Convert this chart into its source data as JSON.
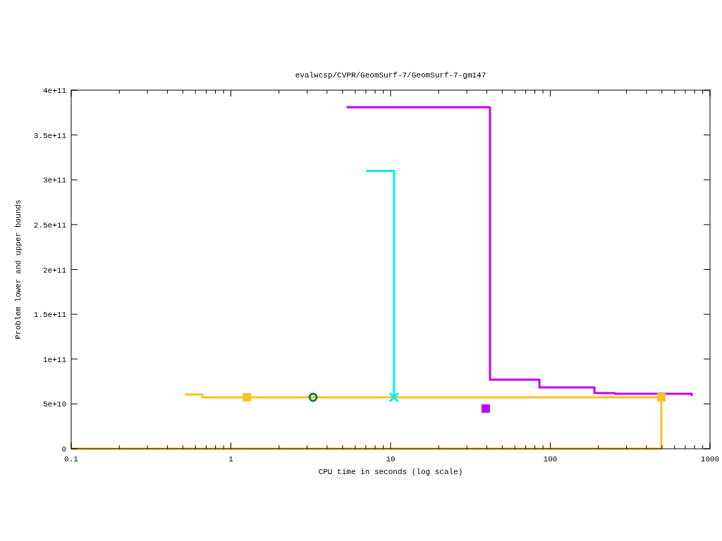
{
  "chart_data": {
    "type": "step",
    "title": "evalwcsp/CVPR/GeomSurf-7/GeomSurf-7-gm147",
    "xlabel": "CPU time in seconds (log scale)",
    "ylabel": "Problem lower and upper bounds",
    "log": "x",
    "grid": false,
    "marker": "none",
    "line_style": "solid",
    "xlim": [
      0.1,
      1000
    ],
    "ylim": [
      0,
      400000000000
    ],
    "xticks": [
      0.1,
      {
        "value": 0.2,
        "label": null
      },
      {
        "value": 0.3,
        "label": null
      },
      {
        "value": 0.4,
        "label": null
      },
      {
        "value": 0.5,
        "label": null
      },
      {
        "value": 0.6,
        "label": null
      },
      {
        "value": 0.7,
        "label": null
      },
      {
        "value": 0.8,
        "label": null
      },
      {
        "value": 0.9,
        "label": null
      },
      1,
      {
        "value": 2,
        "label": null
      },
      {
        "value": 3,
        "label": null
      },
      {
        "value": 4,
        "label": null
      },
      {
        "value": 5,
        "label": null
      },
      {
        "value": 6,
        "label": null
      },
      {
        "value": 7,
        "label": null
      },
      {
        "value": 8,
        "label": null
      },
      {
        "value": 9,
        "label": null
      },
      10,
      {
        "value": 20,
        "label": null
      },
      {
        "value": 30,
        "label": null
      },
      {
        "value": 40,
        "label": null
      },
      {
        "value": 50,
        "label": null
      },
      {
        "value": 60,
        "label": null
      },
      {
        "value": 70,
        "label": null
      },
      {
        "value": 80,
        "label": null
      },
      {
        "value": 90,
        "label": null
      },
      100,
      {
        "value": 200,
        "label": null
      },
      {
        "value": 300,
        "label": null
      },
      {
        "value": 400,
        "label": null
      },
      {
        "value": 500,
        "label": null
      },
      {
        "value": 600,
        "label": null
      },
      {
        "value": 700,
        "label": null
      },
      {
        "value": 800,
        "label": null
      },
      {
        "value": 900,
        "label": null
      },
      1000
    ],
    "yticks": [
      0,
      {
        "value": 50000000000,
        "label": "5e+10"
      },
      {
        "value": 100000000000,
        "label": "1e+11"
      },
      {
        "value": 150000000000,
        "label": "1.5e+11"
      },
      {
        "value": 200000000000,
        "label": "2e+11"
      },
      {
        "value": 250000000000,
        "label": "2.5e+11"
      },
      {
        "value": 300000000000,
        "label": "3e+11"
      },
      {
        "value": 350000000000,
        "label": "3.5e+11"
      },
      {
        "value": 400000000000,
        "label": "4e+11"
      }
    ],
    "series": [
      {
        "color": "#c000ff",
        "x": [
          5.3,
          41.9,
          85.5,
          189,
          254,
          768,
          768
        ],
        "values": [
          381000000000,
          77000000000,
          68400000000,
          62000000000,
          61300000000,
          60500000000,
          59000000000
        ]
      },
      {
        "type": "scatter",
        "marker": "square",
        "color": "#c000ff",
        "x": [
          39.4
        ],
        "values": [
          44800000000
        ]
      },
      {
        "color": "#00eeee",
        "x": [
          7.0,
          10.5,
          10.5
        ],
        "values": [
          310000000000,
          310000000000,
          57400000000
        ]
      },
      {
        "color": "#ffc020",
        "x": [
          0.514,
          0.662,
          496,
          496
        ],
        "values": [
          60500000000,
          57400000000,
          57400000000,
          0
        ]
      },
      {
        "type": "line",
        "color": "#ffc020",
        "x": [
          0.1,
          496
        ],
        "values": [
          0,
          0
        ]
      },
      {
        "type": "scatter",
        "marker": "cross",
        "color": "#00eeee",
        "x": [
          10.5
        ],
        "values": [
          57400000000
        ]
      },
      {
        "type": "scatter",
        "marker": "square",
        "color": "#ffc020",
        "x": [
          1.26,
          496
        ],
        "values": [
          57400000000,
          57400000000
        ]
      },
      {
        "type": "scatter",
        "marker": "circle",
        "color": "#008040",
        "x": [
          3.27
        ],
        "values": [
          57400000000
        ]
      }
    ]
  }
}
